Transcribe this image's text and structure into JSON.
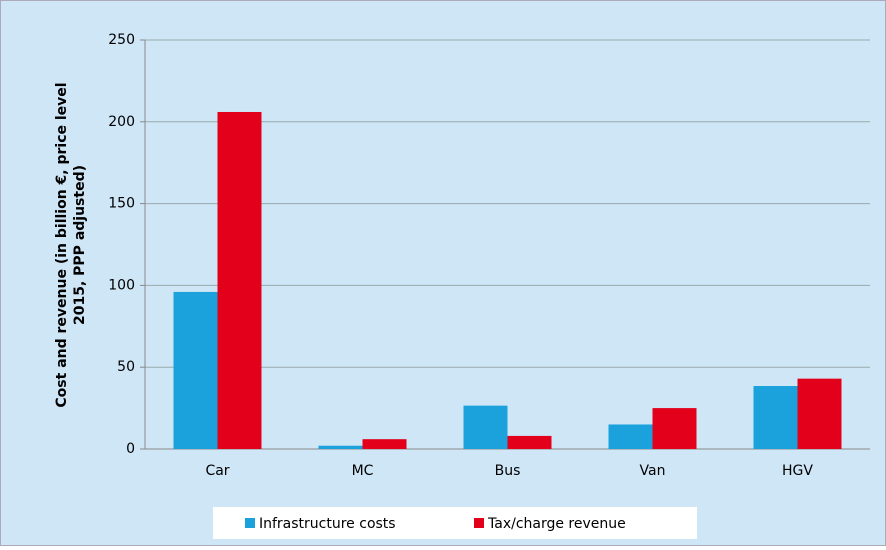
{
  "chart_data": {
    "type": "bar",
    "y_label": [
      "Cost and revenue  (in billion €, price level",
      "2015, PPP adjusted)"
    ],
    "categories": [
      "Car",
      "MC",
      "Bus",
      "Van",
      "HGV"
    ],
    "series": [
      {
        "name": "Infrastructure costs",
        "color": "#1ba1dc",
        "values": [
          96,
          2,
          26.5,
          15,
          38.5
        ]
      },
      {
        "name": "Tax/charge revenue",
        "color": "#e2001a",
        "values": [
          206,
          6,
          8,
          25,
          43
        ]
      }
    ],
    "ylim": [
      0,
      250
    ],
    "yticks": [
      0,
      50,
      100,
      150,
      200,
      250
    ],
    "grid": true,
    "legend": "bottom"
  }
}
